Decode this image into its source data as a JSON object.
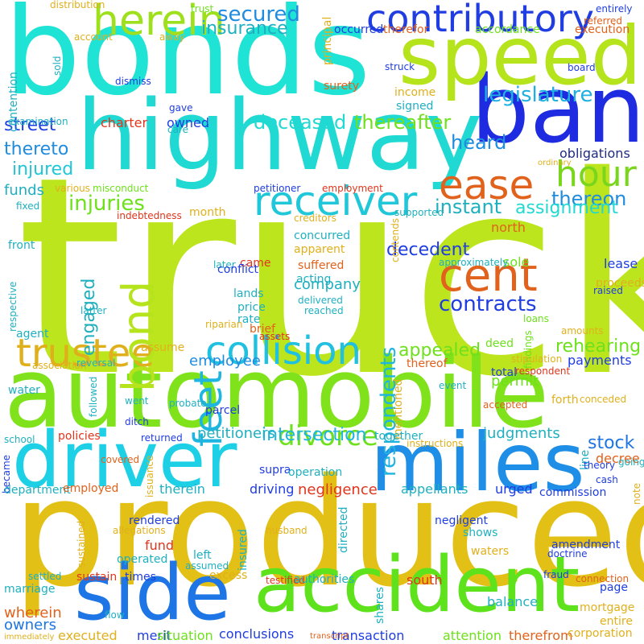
{
  "word_cloud": {
    "background_color": "#ffffff",
    "words": [
      {
        "text": "truck",
        "color": "#bde51e"
      },
      {
        "text": "produced",
        "color": "#e3c015"
      },
      {
        "text": "bonds",
        "color": "#1fe3d4"
      },
      {
        "text": "automobile",
        "color": "#7fe21a"
      },
      {
        "text": "highway",
        "color": "#1fd9d2"
      },
      {
        "text": "bank",
        "color": "#1f2be0"
      },
      {
        "text": "speed",
        "color": "#b5e31c"
      },
      {
        "text": "driver",
        "color": "#1ed0e6"
      },
      {
        "text": "miles",
        "color": "#1e8ee6"
      },
      {
        "text": "accident",
        "color": "#5ee21c"
      },
      {
        "text": "side",
        "color": "#1e75e6"
      },
      {
        "text": "contributory",
        "color": "#1f3de0"
      },
      {
        "text": "herein",
        "color": "#9ee01c"
      },
      {
        "text": "receiver",
        "color": "#1fc7d9"
      },
      {
        "text": "ease",
        "color": "#e0621c"
      },
      {
        "text": "cent",
        "color": "#e0621c"
      },
      {
        "text": "collision",
        "color": "#1fc0e0"
      },
      {
        "text": "trustee",
        "color": "#e0b01c"
      },
      {
        "text": "hour",
        "color": "#7ad61c"
      },
      {
        "text": "feet",
        "color": "#1eb5e0"
      },
      {
        "text": "bond",
        "color": "#b5e31c"
      },
      {
        "text": "divorce",
        "color": "#6ee01c"
      },
      {
        "text": "respondents",
        "color": "#1fb5e0"
      },
      {
        "text": "contracts",
        "color": "#1f3de0"
      },
      {
        "text": "legislature",
        "color": "#1eb0e0"
      },
      {
        "text": "secured",
        "color": "#1f8ce0"
      },
      {
        "text": "insurance",
        "color": "#1fb0c0"
      },
      {
        "text": "deceased",
        "color": "#1fd9d2"
      },
      {
        "text": "thereafter",
        "color": "#6ee01c"
      },
      {
        "text": "street",
        "color": "#1f3de0"
      },
      {
        "text": "thereto",
        "color": "#1f8ce0"
      },
      {
        "text": "injured",
        "color": "#1fc7d9"
      },
      {
        "text": "injuries",
        "color": "#6ee01c"
      },
      {
        "text": "heard",
        "color": "#1f8ce0"
      },
      {
        "text": "instant",
        "color": "#1fb0c0"
      },
      {
        "text": "thereon",
        "color": "#1f8ce0"
      },
      {
        "text": "assignment",
        "color": "#1fd9d2"
      },
      {
        "text": "decedent",
        "color": "#1f3de0"
      },
      {
        "text": "intersection",
        "color": "#1fb5e0"
      },
      {
        "text": "stock",
        "color": "#1f75e0"
      },
      {
        "text": "appealed",
        "color": "#6ee01c"
      },
      {
        "text": "rehearing",
        "color": "#6ee01c"
      },
      {
        "text": "engaged",
        "color": "#1fb0c0"
      },
      {
        "text": "employee",
        "color": "#1f8ce0"
      },
      {
        "text": "petitioners",
        "color": "#1fb0c0"
      },
      {
        "text": "judgments",
        "color": "#1fb0c0"
      },
      {
        "text": "negligence",
        "color": "#e0351c"
      },
      {
        "text": "permit",
        "color": "#6ee01c"
      },
      {
        "text": "company",
        "color": "#1fb0c0"
      },
      {
        "text": "obligations",
        "color": "#1f2b80"
      },
      {
        "text": "funds",
        "color": "#1fb0c0"
      },
      {
        "text": "charter",
        "color": "#e0351c"
      },
      {
        "text": "owned",
        "color": "#1f3de0"
      },
      {
        "text": "payments",
        "color": "#1f3de0"
      },
      {
        "text": "principal",
        "color": "#e0b01c"
      },
      {
        "text": "therefor",
        "color": "#e0621c"
      },
      {
        "text": "accordance",
        "color": "#6ee01c"
      },
      {
        "text": "occurred",
        "color": "#1f3de0"
      },
      {
        "text": "income",
        "color": "#e0b01c"
      },
      {
        "text": "signed",
        "color": "#1fb0c0"
      },
      {
        "text": "surety",
        "color": "#e0621c"
      },
      {
        "text": "execution",
        "color": "#e0621c"
      },
      {
        "text": "entirely",
        "color": "#1f3de0"
      },
      {
        "text": "referred",
        "color": "#e0621c"
      },
      {
        "text": "board",
        "color": "#1f3de0"
      },
      {
        "text": "struck",
        "color": "#1f3de0"
      },
      {
        "text": "dismiss",
        "color": "#1f3de0"
      },
      {
        "text": "gave",
        "color": "#1f3de0"
      },
      {
        "text": "care",
        "color": "#1fb0c0"
      },
      {
        "text": "examination",
        "color": "#1fb0c0"
      },
      {
        "text": "contention",
        "color": "#1fb0c0"
      },
      {
        "text": "sold",
        "color": "#1fb0c0"
      },
      {
        "text": "account",
        "color": "#e0b01c"
      },
      {
        "text": "away",
        "color": "#e0b01c"
      },
      {
        "text": "trust",
        "color": "#6ee01c"
      },
      {
        "text": "distribution",
        "color": "#e0b01c"
      },
      {
        "text": "misconduct",
        "color": "#6ee01c"
      },
      {
        "text": "various",
        "color": "#e0b01c"
      },
      {
        "text": "petitioner",
        "color": "#1f3de0"
      },
      {
        "text": "employment",
        "color": "#e0351c"
      },
      {
        "text": "indebtedness",
        "color": "#e0351c"
      },
      {
        "text": "month",
        "color": "#e0b01c"
      },
      {
        "text": "creditors",
        "color": "#e0b01c"
      },
      {
        "text": "supported",
        "color": "#1fb0c0"
      },
      {
        "text": "contends",
        "color": "#e0b01c"
      },
      {
        "text": "concurred",
        "color": "#1fb0c0"
      },
      {
        "text": "apparent",
        "color": "#e0b01c"
      },
      {
        "text": "suffered",
        "color": "#e0621c"
      },
      {
        "text": "came",
        "color": "#e0351c"
      },
      {
        "text": "later",
        "color": "#1fb0c0"
      },
      {
        "text": "fixed",
        "color": "#1fb0c0"
      },
      {
        "text": "front",
        "color": "#1fb0c0"
      },
      {
        "text": "conflict",
        "color": "#1f3de0"
      },
      {
        "text": "acting",
        "color": "#1fb0c0"
      },
      {
        "text": "lands",
        "color": "#1fb0c0"
      },
      {
        "text": "north",
        "color": "#e0621c"
      },
      {
        "text": "sole",
        "color": "#6ee01c"
      },
      {
        "text": "approximately",
        "color": "#1fb0c0"
      },
      {
        "text": "lease",
        "color": "#1f3de0"
      },
      {
        "text": "proceeds",
        "color": "#e0b01c"
      },
      {
        "text": "raised",
        "color": "#1f3de0"
      },
      {
        "text": "respective",
        "color": "#1fb0c0"
      },
      {
        "text": "latter",
        "color": "#1fb0c0"
      },
      {
        "text": "price",
        "color": "#1fb0c0"
      },
      {
        "text": "rate",
        "color": "#1fb0c0"
      },
      {
        "text": "delivered",
        "color": "#1fb0c0"
      },
      {
        "text": "reached",
        "color": "#1fb0c0"
      },
      {
        "text": "riparian",
        "color": "#e0b01c"
      },
      {
        "text": "brief",
        "color": "#e0621c"
      },
      {
        "text": "assets",
        "color": "#e0351c"
      },
      {
        "text": "agent",
        "color": "#1fb0c0"
      },
      {
        "text": "loans",
        "color": "#6ee01c"
      },
      {
        "text": "amounts",
        "color": "#e0b01c"
      },
      {
        "text": "findings",
        "color": "#6ee01c"
      },
      {
        "text": "assume",
        "color": "#e0b01c"
      },
      {
        "text": "deed",
        "color": "#6ee01c"
      },
      {
        "text": "stipulation",
        "color": "#e0b01c"
      },
      {
        "text": "association",
        "color": "#e0b01c"
      },
      {
        "text": "reversal",
        "color": "#1fb0c0"
      },
      {
        "text": "thereof",
        "color": "#e0621c"
      },
      {
        "text": "respondent",
        "color": "#e0351c"
      },
      {
        "text": "water",
        "color": "#1fb0c0"
      },
      {
        "text": "total",
        "color": "#1f3de0"
      },
      {
        "text": "event",
        "color": "#1fb0c0"
      },
      {
        "text": "forth",
        "color": "#e0b01c"
      },
      {
        "text": "followed",
        "color": "#1fb0c0"
      },
      {
        "text": "went",
        "color": "#1fb0c0"
      },
      {
        "text": "probate",
        "color": "#1fb0c0"
      },
      {
        "text": "mentioned",
        "color": "#e0b01c"
      },
      {
        "text": "accepted",
        "color": "#e0621c"
      },
      {
        "text": "conceded",
        "color": "#e0b01c"
      },
      {
        "text": "ditch",
        "color": "#1f3de0"
      },
      {
        "text": "parcel",
        "color": "#1f3de0"
      },
      {
        "text": "school",
        "color": "#1fb0c0"
      },
      {
        "text": "policies",
        "color": "#e0351c"
      },
      {
        "text": "returned",
        "color": "#1f3de0"
      },
      {
        "text": "together",
        "color": "#1fb0c0"
      },
      {
        "text": "instructions",
        "color": "#e0b01c"
      },
      {
        "text": "line",
        "color": "#1fb0c0"
      },
      {
        "text": "decree",
        "color": "#e0621c"
      },
      {
        "text": "theory",
        "color": "#1f3de0"
      },
      {
        "text": "going",
        "color": "#1fb0c0"
      },
      {
        "text": "became",
        "color": "#1f3de0"
      },
      {
        "text": "covered",
        "color": "#e0621c"
      },
      {
        "text": "issuance",
        "color": "#e0b01c"
      },
      {
        "text": "supra",
        "color": "#1f3de0"
      },
      {
        "text": "operation",
        "color": "#1fb0c0"
      },
      {
        "text": "department",
        "color": "#1fb0c0"
      },
      {
        "text": "employed",
        "color": "#e0621c"
      },
      {
        "text": "therein",
        "color": "#1fb0c0"
      },
      {
        "text": "driving",
        "color": "#1f3de0"
      },
      {
        "text": "appellants",
        "color": "#1fb0c0"
      },
      {
        "text": "urged",
        "color": "#1f3de0"
      },
      {
        "text": "commission",
        "color": "#1f3de0"
      },
      {
        "text": "cash",
        "color": "#1f3de0"
      },
      {
        "text": "note",
        "color": "#e0b01c"
      },
      {
        "text": "sustained",
        "color": "#e0b01c"
      },
      {
        "text": "allegations",
        "color": "#e0b01c"
      },
      {
        "text": "rendered",
        "color": "#1f3de0"
      },
      {
        "text": "fund",
        "color": "#e0351c"
      },
      {
        "text": "left",
        "color": "#1fb0c0"
      },
      {
        "text": "assumed",
        "color": "#1fb0c0"
      },
      {
        "text": "insured",
        "color": "#1fb0c0"
      },
      {
        "text": "husband",
        "color": "#e0b01c"
      },
      {
        "text": "directed",
        "color": "#1fb0c0"
      },
      {
        "text": "negligent",
        "color": "#1f3de0"
      },
      {
        "text": "shows",
        "color": "#1fb0c0"
      },
      {
        "text": "waters",
        "color": "#e0b01c"
      },
      {
        "text": "amendment",
        "color": "#1f3de0"
      },
      {
        "text": "doctrine",
        "color": "#1f3de0"
      },
      {
        "text": "operated",
        "color": "#1fb0c0"
      },
      {
        "text": "excess",
        "color": "#e0b01c"
      },
      {
        "text": "settled",
        "color": "#1fb0c0"
      },
      {
        "text": "sustain",
        "color": "#e0351c"
      },
      {
        "text": "times",
        "color": "#1f3de0"
      },
      {
        "text": "testified",
        "color": "#e0351c"
      },
      {
        "text": "fraud",
        "color": "#1f3de0"
      },
      {
        "text": "connection",
        "color": "#e0621c"
      },
      {
        "text": "marriage",
        "color": "#1fb0c0"
      },
      {
        "text": "authorities",
        "color": "#1fb0c0"
      },
      {
        "text": "south",
        "color": "#e0351c"
      },
      {
        "text": "balance",
        "color": "#1fb0c0"
      },
      {
        "text": "page",
        "color": "#1f3de0"
      },
      {
        "text": "wherein",
        "color": "#e0621c"
      },
      {
        "text": "flow",
        "color": "#1fb0c0"
      },
      {
        "text": "owners",
        "color": "#1f75e0"
      },
      {
        "text": "shares",
        "color": "#1fb0c0"
      },
      {
        "text": "mortgage",
        "color": "#e0b01c"
      },
      {
        "text": "entire",
        "color": "#e0b01c"
      },
      {
        "text": "executed",
        "color": "#e0b01c"
      },
      {
        "text": "merit",
        "color": "#1f3de0"
      },
      {
        "text": "situation",
        "color": "#6ee01c"
      },
      {
        "text": "conclusions",
        "color": "#1f3de0"
      },
      {
        "text": "transaction",
        "color": "#1f3de0"
      },
      {
        "text": "attention",
        "color": "#6ee01c"
      },
      {
        "text": "therefrom",
        "color": "#e0621c"
      },
      {
        "text": "corporation",
        "color": "#e0b01c"
      },
      {
        "text": "immediately",
        "color": "#e0b01c"
      },
      {
        "text": "transcript",
        "color": "#e0621c"
      },
      {
        "text": "ordinary",
        "color": "#e0b01c"
      }
    ]
  }
}
